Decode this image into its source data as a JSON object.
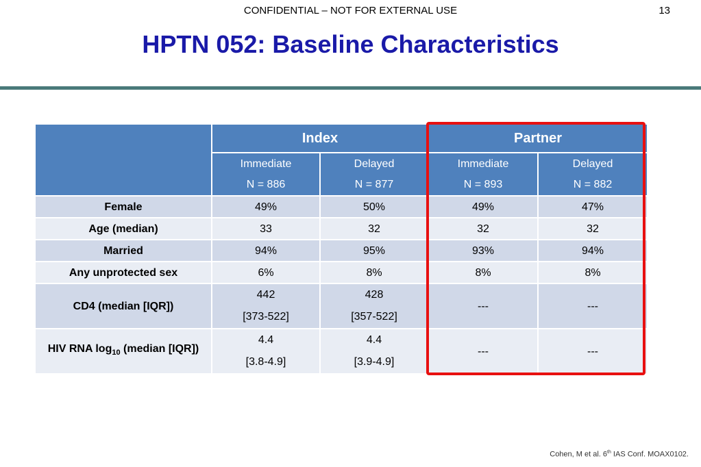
{
  "header": {
    "confidential": "CONFIDENTIAL – NOT FOR EXTERNAL USE",
    "page_number": "13"
  },
  "title": "HPTN 052: Baseline Characteristics",
  "table": {
    "groups": [
      "Index",
      "Partner"
    ],
    "columns": [
      {
        "arm": "Immediate",
        "n": "N = 886"
      },
      {
        "arm": "Delayed",
        "n": "N = 877"
      },
      {
        "arm": "Immediate",
        "n": "N = 893"
      },
      {
        "arm": "Delayed",
        "n": "N = 882"
      }
    ],
    "rows": [
      {
        "label": "Female",
        "cells": [
          "49%",
          "50%",
          "49%",
          "47%"
        ]
      },
      {
        "label": "Age (median)",
        "cells": [
          "33",
          "32",
          "32",
          "32"
        ]
      },
      {
        "label": "Married",
        "cells": [
          "94%",
          "95%",
          "93%",
          "94%"
        ]
      },
      {
        "label": "Any unprotected sex",
        "cells": [
          "6%",
          "8%",
          "8%",
          "8%"
        ]
      },
      {
        "label": "CD4 (median [IQR])",
        "cells": [
          [
            "442",
            "[373-522]"
          ],
          [
            "428",
            "[357-522]"
          ],
          "---",
          "---"
        ]
      },
      {
        "label_pre": "HIV RNA log",
        "label_sub": "10",
        "label_post": " (median [IQR])",
        "cells": [
          [
            "4.4",
            "[3.8-4.9]"
          ],
          [
            "4.4",
            "[3.9-4.9]"
          ],
          "---",
          "---"
        ]
      }
    ]
  },
  "citation": {
    "pre": "Cohen, M et al.  6",
    "sup": "th",
    "post": " IAS Conf. MOAX0102."
  },
  "colors": {
    "header_bg": "#4f81bd",
    "row_dark": "#d0d8e8",
    "row_light": "#e9edf4",
    "highlight": "#e81010",
    "title": "#1a1aa8"
  }
}
